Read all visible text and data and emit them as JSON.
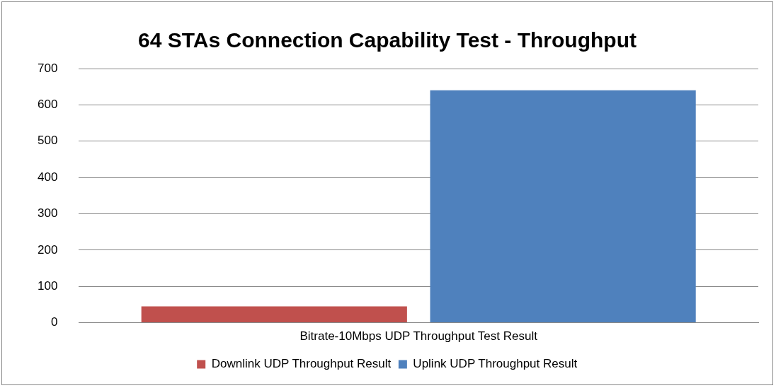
{
  "chart_data": {
    "type": "bar",
    "title": "64 STAs Connection Capability Test - Throughput",
    "categories": [
      "Bitrate-10Mbps UDP Throughput Test Result"
    ],
    "series": [
      {
        "name": "Downlink UDP Throughput Result",
        "color": "#c0504d",
        "values": [
          45
        ]
      },
      {
        "name": "Uplink UDP Throughput Result",
        "color": "#4f81bd",
        "values": [
          640
        ]
      }
    ],
    "ylim": [
      0,
      700
    ],
    "yticks": [
      0,
      100,
      200,
      300,
      400,
      500,
      600,
      700
    ],
    "grid": "y",
    "legend": "bottom"
  }
}
